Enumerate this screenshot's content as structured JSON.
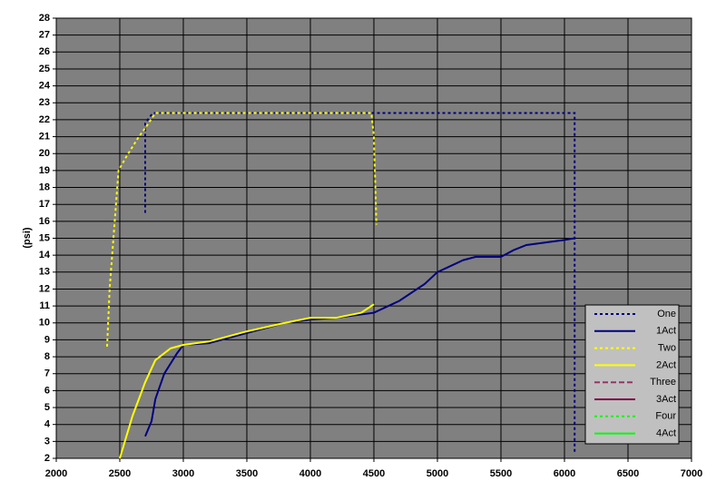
{
  "chart_data": {
    "type": "line",
    "ylabel": "(psi)",
    "xlim": [
      2000,
      7000
    ],
    "xticks": [
      2000,
      2500,
      3000,
      3500,
      4000,
      4500,
      5000,
      5500,
      6000,
      6500,
      7000
    ],
    "ylim": [
      2,
      28
    ],
    "yticks": [
      2,
      3,
      4,
      5,
      6,
      7,
      8,
      9,
      10,
      11,
      12,
      13,
      14,
      15,
      16,
      17,
      18,
      19,
      20,
      21,
      22,
      23,
      24,
      25,
      26,
      27,
      28
    ],
    "grid": true,
    "legend": "lower right",
    "series": [
      {
        "name": "One",
        "color": "#000080",
        "style": "dotted",
        "x": [
          2700,
          2700,
          2760,
          6080,
          6080
        ],
        "values": [
          16.5,
          21.8,
          22.4,
          22.4,
          2.3
        ]
      },
      {
        "name": "1Act",
        "color": "#000080",
        "style": "solid",
        "x": [
          2700,
          2750,
          2780,
          2850,
          2950,
          3000,
          3200,
          3500,
          3800,
          4000,
          4200,
          4500,
          4700,
          4900,
          5000,
          5200,
          5300,
          5500,
          5600,
          5700,
          5800,
          5900,
          6000,
          6080
        ],
        "values": [
          3.3,
          4.2,
          5.5,
          7,
          8.2,
          8.7,
          8.8,
          9.4,
          10,
          10.2,
          10.3,
          10.6,
          11.3,
          12.3,
          13,
          13.7,
          13.9,
          13.9,
          14.3,
          14.6,
          14.7,
          14.8,
          14.9,
          15
        ]
      },
      {
        "name": "Two",
        "color": "#ffff00",
        "style": "dotted",
        "x": [
          2400,
          2420,
          2460,
          2490,
          2550,
          2650,
          2700,
          2780,
          4480,
          4500,
          4520
        ],
        "values": [
          8.6,
          12,
          16,
          19,
          19.8,
          21,
          21.5,
          22.4,
          22.4,
          21,
          15.8
        ]
      },
      {
        "name": "2Act",
        "color": "#ffff00",
        "style": "solid",
        "x": [
          2500,
          2560,
          2600,
          2650,
          2700,
          2780,
          2900,
          3000,
          3200,
          3500,
          3800,
          4000,
          4200,
          4400,
          4500
        ],
        "values": [
          2,
          3.5,
          4.5,
          5.5,
          6.5,
          7.8,
          8.5,
          8.7,
          8.9,
          9.5,
          10,
          10.3,
          10.3,
          10.6,
          11.1
        ]
      },
      {
        "name": "Three",
        "color": "#993366",
        "style": "dashed",
        "x": [],
        "values": []
      },
      {
        "name": "3Act",
        "color": "#800040",
        "style": "solid",
        "x": [],
        "values": []
      },
      {
        "name": "Four",
        "color": "#00ff00",
        "style": "dotted",
        "x": [],
        "values": []
      },
      {
        "name": "4Act",
        "color": "#00ff00",
        "style": "solid",
        "x": [],
        "values": []
      }
    ]
  }
}
